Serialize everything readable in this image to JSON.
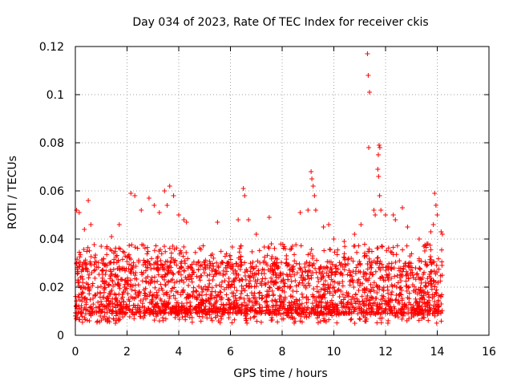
{
  "chart_data": {
    "type": "scatter",
    "title": "Day 034 of 2023, Rate Of TEC Index for receiver ckis",
    "xlabel": "GPS time / hours",
    "ylabel": "ROTI / TECUs",
    "xlim": [
      0,
      16
    ],
    "ylim": [
      0,
      0.12
    ],
    "x_ticks": [
      0,
      2,
      4,
      6,
      8,
      10,
      12,
      14,
      16
    ],
    "x_tick_labels": [
      "0",
      "2",
      "4",
      "6",
      "8",
      "10",
      "12",
      "14",
      "16"
    ],
    "y_ticks": [
      0,
      0.02,
      0.04,
      0.06,
      0.08,
      0.1,
      0.12
    ],
    "y_tick_labels": [
      "0",
      "0.02",
      "0.04",
      "0.06",
      "0.08",
      "0.1",
      "0.12"
    ],
    "grid": true,
    "marker": "+",
    "color": "#ff0000",
    "series": [
      {
        "name": "ROTI",
        "points": [
          [
            0.05,
            0.052
          ],
          [
            0.15,
            0.051
          ],
          [
            0.35,
            0.044
          ],
          [
            0.5,
            0.056
          ],
          [
            0.6,
            0.046
          ],
          [
            1.0,
            0.037
          ],
          [
            1.4,
            0.041
          ],
          [
            1.7,
            0.046
          ],
          [
            2.15,
            0.059
          ],
          [
            2.3,
            0.058
          ],
          [
            2.55,
            0.052
          ],
          [
            2.85,
            0.057
          ],
          [
            3.05,
            0.054
          ],
          [
            3.25,
            0.051
          ],
          [
            3.45,
            0.06
          ],
          [
            3.55,
            0.054
          ],
          [
            3.65,
            0.062
          ],
          [
            3.8,
            0.058
          ],
          [
            4.0,
            0.05
          ],
          [
            4.2,
            0.048
          ],
          [
            4.3,
            0.047
          ],
          [
            5.5,
            0.047
          ],
          [
            6.3,
            0.048
          ],
          [
            6.5,
            0.061
          ],
          [
            6.55,
            0.058
          ],
          [
            6.7,
            0.048
          ],
          [
            7.0,
            0.042
          ],
          [
            7.5,
            0.049
          ],
          [
            8.7,
            0.051
          ],
          [
            9.0,
            0.052
          ],
          [
            9.12,
            0.068
          ],
          [
            9.15,
            0.065
          ],
          [
            9.2,
            0.062
          ],
          [
            9.25,
            0.058
          ],
          [
            9.3,
            0.052
          ],
          [
            9.6,
            0.045
          ],
          [
            9.8,
            0.046
          ],
          [
            10.0,
            0.04
          ],
          [
            10.4,
            0.039
          ],
          [
            10.8,
            0.042
          ],
          [
            11.05,
            0.046
          ],
          [
            11.3,
            0.117
          ],
          [
            11.33,
            0.108
          ],
          [
            11.38,
            0.101
          ],
          [
            11.35,
            0.078
          ],
          [
            11.55,
            0.052
          ],
          [
            11.6,
            0.05
          ],
          [
            11.75,
            0.079
          ],
          [
            11.78,
            0.078
          ],
          [
            11.72,
            0.075
          ],
          [
            11.7,
            0.069
          ],
          [
            11.73,
            0.066
          ],
          [
            11.77,
            0.058
          ],
          [
            11.82,
            0.052
          ],
          [
            12.0,
            0.05
          ],
          [
            12.3,
            0.05
          ],
          [
            12.38,
            0.048
          ],
          [
            12.65,
            0.053
          ],
          [
            12.85,
            0.045
          ],
          [
            13.3,
            0.04
          ],
          [
            13.6,
            0.038
          ],
          [
            13.75,
            0.043
          ],
          [
            13.85,
            0.046
          ],
          [
            13.9,
            0.059
          ],
          [
            13.95,
            0.054
          ],
          [
            14.0,
            0.05
          ],
          [
            14.15,
            0.043
          ],
          [
            14.2,
            0.042
          ]
        ]
      }
    ]
  }
}
